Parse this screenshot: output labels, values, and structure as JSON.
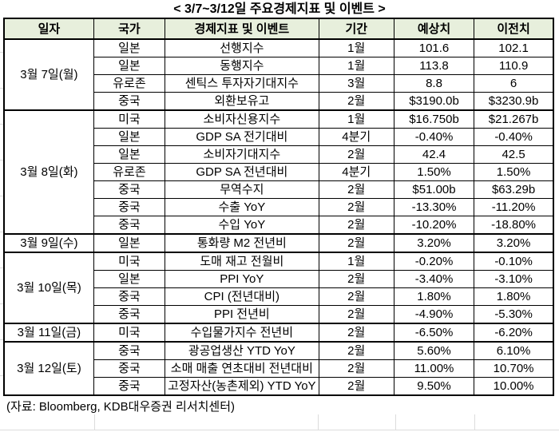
{
  "title": "< 3/7~3/12일 주요경제지표 및 이벤트 >",
  "columns": [
    "일자",
    "국가",
    "경제지표 및 이벤트",
    "기간",
    "예상치",
    "이전치"
  ],
  "groups": [
    {
      "date": "3월 7일(월)",
      "rows": [
        {
          "country": "일본",
          "event": "선행지수",
          "period": "1월",
          "forecast": "101.6",
          "previous": "102.1"
        },
        {
          "country": "일본",
          "event": "동행지수",
          "period": "1월",
          "forecast": "113.8",
          "previous": "110.9"
        },
        {
          "country": "유로존",
          "event": "센틱스 투자자기대지수",
          "period": "3월",
          "forecast": "8.8",
          "previous": "6"
        },
        {
          "country": "중국",
          "event": "외환보유고",
          "period": "2월",
          "forecast": "$3190.0b",
          "previous": "$3230.9b"
        }
      ]
    },
    {
      "date": "3월 8일(화)",
      "rows": [
        {
          "country": "미국",
          "event": "소비자신용지수",
          "period": "1월",
          "forecast": "$16.750b",
          "previous": "$21.267b"
        },
        {
          "country": "일본",
          "event": "GDP SA 전기대비",
          "period": "4분기",
          "forecast": "-0.40%",
          "previous": "-0.40%"
        },
        {
          "country": "일본",
          "event": "소비자기대지수",
          "period": "2월",
          "forecast": "42.4",
          "previous": "42.5"
        },
        {
          "country": "유로존",
          "event": "GDP SA 전년대비",
          "period": "4분기",
          "forecast": "1.50%",
          "previous": "1.50%"
        },
        {
          "country": "중국",
          "event": "무역수지",
          "period": "2월",
          "forecast": "$51.00b",
          "previous": "$63.29b"
        },
        {
          "country": "중국",
          "event": "수출 YoY",
          "period": "2월",
          "forecast": "-13.30%",
          "previous": "-11.20%"
        },
        {
          "country": "중국",
          "event": "수입 YoY",
          "period": "2월",
          "forecast": "-10.20%",
          "previous": "-18.80%"
        }
      ]
    },
    {
      "date": "3월 9일(수)",
      "rows": [
        {
          "country": "일본",
          "event": "통화량 M2 전년비",
          "period": "2월",
          "forecast": "3.20%",
          "previous": "3.20%"
        }
      ]
    },
    {
      "date": "3월 10일(목)",
      "rows": [
        {
          "country": "미국",
          "event": "도매 재고 전월비",
          "period": "1월",
          "forecast": "-0.20%",
          "previous": "-0.10%"
        },
        {
          "country": "일본",
          "event": "PPI YoY",
          "period": "2월",
          "forecast": "-3.40%",
          "previous": "-3.10%"
        },
        {
          "country": "중국",
          "event": "CPI (전년대비)",
          "period": "2월",
          "forecast": "1.80%",
          "previous": "1.80%"
        },
        {
          "country": "중국",
          "event": "PPI 전년비",
          "period": "2월",
          "forecast": "-4.90%",
          "previous": "-5.30%"
        }
      ]
    },
    {
      "date": "3월 11일(금)",
      "rows": [
        {
          "country": "미국",
          "event": "수입물가지수 전년비",
          "period": "2월",
          "forecast": "-6.50%",
          "previous": "-6.20%"
        }
      ]
    },
    {
      "date": "3월 12일(토)",
      "rows": [
        {
          "country": "중국",
          "event": "광공업생산 YTD YoY",
          "period": "2월",
          "forecast": "5.60%",
          "previous": "6.10%"
        },
        {
          "country": "중국",
          "event": "소매 매출 연초대비 전년대비",
          "period": "2월",
          "forecast": "11.00%",
          "previous": "10.70%"
        },
        {
          "country": "중국",
          "event": "고정자산(농촌제외) YTD YoY",
          "period": "2월",
          "forecast": "9.50%",
          "previous": "10.00%"
        }
      ]
    }
  ],
  "footer": "(자료: Bloomberg, KDB대우증권 리서치센터)",
  "colors": {
    "header_bg": "#e7efdc",
    "border": "#000000",
    "text": "#000000",
    "gridline": "#dcdcdc"
  }
}
